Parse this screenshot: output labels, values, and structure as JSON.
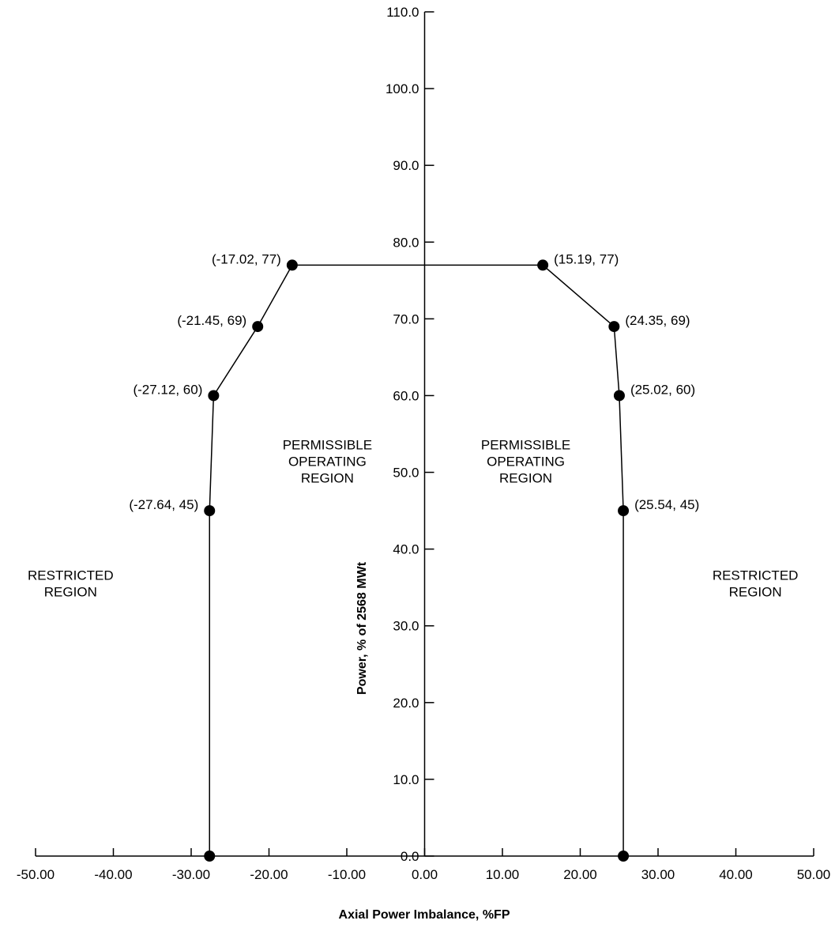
{
  "chart_data": {
    "type": "line",
    "title": "",
    "xlabel": "Axial Power Imbalance, %FP",
    "ylabel": "Power, % of 2568 MWt",
    "xlim": [
      -50,
      50
    ],
    "ylim": [
      0,
      110
    ],
    "x_ticks": [
      "-50.00",
      "-40.00",
      "-30.00",
      "-20.00",
      "-10.00",
      "0.00",
      "10.00",
      "20.00",
      "30.00",
      "40.00",
      "50.00"
    ],
    "y_ticks": [
      "0.0",
      "10.0",
      "20.0",
      "30.0",
      "40.0",
      "50.0",
      "60.0",
      "70.0",
      "80.0",
      "90.0",
      "100.0",
      "110.0"
    ],
    "grid": false,
    "legend": "none",
    "line_color": "#000000",
    "series": [
      {
        "points": [
          {
            "x": -27.64,
            "y": 0,
            "label": ""
          },
          {
            "x": -27.64,
            "y": 45,
            "label": "(-27.64, 45)"
          },
          {
            "x": -27.12,
            "y": 60,
            "label": "(-27.12, 60)"
          },
          {
            "x": -21.45,
            "y": 69,
            "label": "(-21.45, 69)"
          },
          {
            "x": -17.02,
            "y": 77,
            "label": "(-17.02, 77)"
          },
          {
            "x": 15.19,
            "y": 77,
            "label": "(15.19, 77)"
          },
          {
            "x": 24.35,
            "y": 69,
            "label": "(24.35, 69)"
          },
          {
            "x": 25.02,
            "y": 60,
            "label": "(25.02, 60)"
          },
          {
            "x": 25.54,
            "y": 45,
            "label": "(25.54, 45)"
          },
          {
            "x": 25.54,
            "y": 0,
            "label": ""
          }
        ]
      }
    ],
    "annotations": [
      {
        "lines": [
          "RESTRICTED",
          "REGION"
        ],
        "x": -45.5,
        "y": 36
      },
      {
        "lines": [
          "PERMISSIBLE",
          "OPERATING",
          "REGION"
        ],
        "x": -12.5,
        "y": 53
      },
      {
        "lines": [
          "PERMISSIBLE",
          "OPERATING",
          "REGION"
        ],
        "x": 13,
        "y": 53
      },
      {
        "lines": [
          "RESTRICTED",
          "REGION"
        ],
        "x": 42.5,
        "y": 36
      }
    ]
  }
}
